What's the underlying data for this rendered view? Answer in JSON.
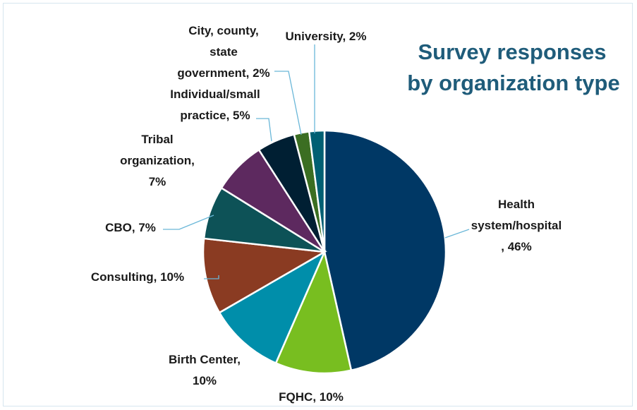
{
  "chart_data": {
    "type": "pie",
    "title": "Survey responses by organization type",
    "title_lines": [
      "Survey responses",
      "by organization type"
    ],
    "title_color": "#1f5c7a",
    "slices": [
      {
        "name": "Health system/hospital",
        "value": 46,
        "color": "#003865",
        "label_lines": [
          "Health",
          "system/hospital",
          ", 46%"
        ]
      },
      {
        "name": "FQHC",
        "value": 10,
        "color": "#78be20",
        "label_lines": [
          "FQHC, 10%"
        ]
      },
      {
        "name": "Birth Center",
        "value": 10,
        "color": "#008eaa",
        "label_lines": [
          "Birth Center,",
          "10%"
        ]
      },
      {
        "name": "Consulting",
        "value": 10,
        "color": "#8a3b22",
        "label_lines": [
          "Consulting, 10%"
        ]
      },
      {
        "name": "CBO",
        "value": 7,
        "color": "#0d5257",
        "label_lines": [
          "CBO, 7%"
        ]
      },
      {
        "name": "Tribal organization",
        "value": 7,
        "color": "#5d295f",
        "label_lines": [
          "Tribal",
          "organization,",
          "7%"
        ]
      },
      {
        "name": "Individual/small practice",
        "value": 5,
        "color": "#001f33",
        "label_lines": [
          "Individual/small",
          "practice, 5%"
        ]
      },
      {
        "name": "City, county, state government",
        "value": 2,
        "color": "#3b6e22",
        "label_lines": [
          "City, county,",
          "state",
          "government, 2%"
        ]
      },
      {
        "name": "University",
        "value": 2,
        "color": "#005f73",
        "label_lines": [
          "University, 2%"
        ]
      }
    ],
    "legend": "none",
    "data_labels": "outside"
  }
}
